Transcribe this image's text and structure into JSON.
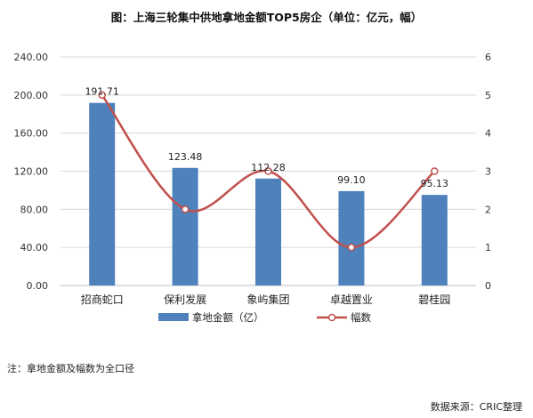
{
  "title": "图：上海三轮集中供地拿地金额TOP5房企（单位：亿元，幅）",
  "note": "注：拿地金额及幅数为全口径",
  "source": "数据来源：CRIC整理",
  "colors": {
    "bar": "#4F81BD",
    "line": "#C0504D",
    "marker_fill": "#FFFFFF",
    "grid": "#D9D9D9",
    "axis": "#BFBFBF"
  },
  "chart_data": {
    "type": "bar",
    "title": "图：上海三轮集中供地拿地金额TOP5房企（单位：亿元，幅）",
    "categories": [
      "招商蛇口",
      "保利发展",
      "象屿集团",
      "卓越置业",
      "碧桂园"
    ],
    "series": [
      {
        "name": "拿地金额（亿）",
        "type": "bar",
        "axis": "left",
        "values": [
          191.71,
          123.48,
          112.28,
          99.1,
          95.13
        ],
        "labels": [
          "191.71",
          "123.48",
          "112.28",
          "99.10",
          "95.13"
        ]
      },
      {
        "name": "幅数",
        "type": "line",
        "smooth": true,
        "axis": "right",
        "values": [
          5,
          2,
          3,
          1,
          3
        ]
      }
    ],
    "y_left": {
      "min": 0,
      "max": 240,
      "ticks": [
        "0.00",
        "40.00",
        "80.00",
        "120.00",
        "160.00",
        "200.00",
        "240.00"
      ]
    },
    "y_right": {
      "min": 0,
      "max": 6,
      "ticks": [
        "0",
        "1",
        "2",
        "3",
        "4",
        "5",
        "6"
      ]
    },
    "grid": true,
    "legend": "bottom"
  }
}
